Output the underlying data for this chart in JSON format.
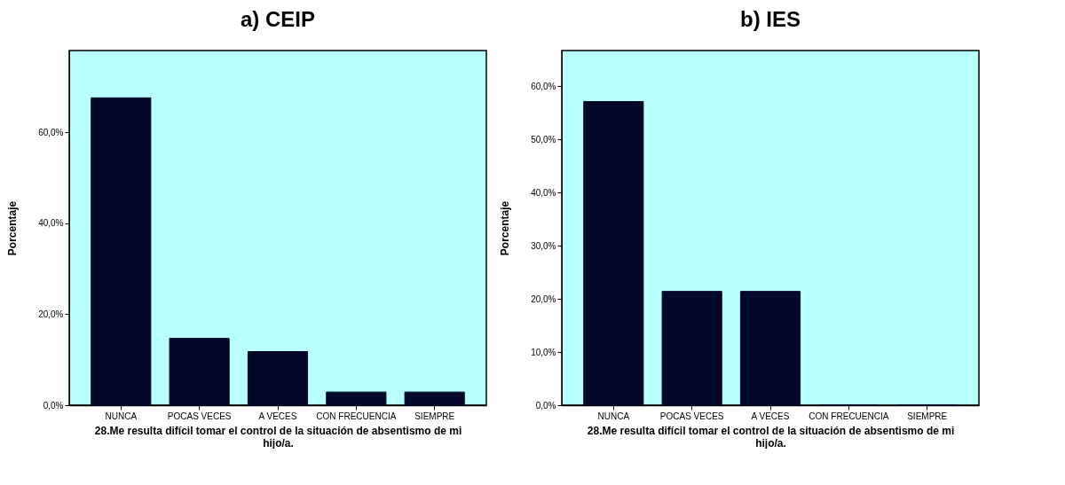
{
  "chart_data": [
    {
      "type": "bar",
      "title": "a)   CEIP",
      "xlabel": "28.Me resulta difícil tomar el control de la situación de absentismo de mi hijo/a.",
      "ylabel": "Porcentaje",
      "categories": [
        "NUNCA",
        "POCAS VECES",
        "A VECES",
        "CON FRECUENCIA",
        "SIEMPRE"
      ],
      "values": [
        67.6,
        14.7,
        11.8,
        2.9,
        2.9
      ],
      "color": "#030828",
      "ylim": [
        0,
        78
      ],
      "yticks": [
        {
          "value": 0,
          "label": "0,0%"
        },
        {
          "value": 20,
          "label": "20,0%"
        },
        {
          "value": 40,
          "label": "40,0%"
        },
        {
          "value": 60,
          "label": "60,0%"
        }
      ],
      "grid": false
    },
    {
      "type": "bar",
      "title": "b) IES",
      "xlabel": "28.Me resulta difícil tomar el control de la situación de absentismo de mi hijo/a.",
      "ylabel": "Porcentaje",
      "categories": [
        "NUNCA",
        "POCAS VECES",
        "A VECES",
        "CON FRECUENCIA",
        "SIEMPRE"
      ],
      "values": [
        57.1,
        21.4,
        21.4,
        0,
        0
      ],
      "color": "#030828",
      "ylim": [
        0,
        66.7
      ],
      "yticks": [
        {
          "value": 0,
          "label": "0,0%"
        },
        {
          "value": 10,
          "label": "10,0%"
        },
        {
          "value": 20,
          "label": "20,0%"
        },
        {
          "value": 30,
          "label": "30,0%"
        },
        {
          "value": 40,
          "label": "40,0%"
        },
        {
          "value": 50,
          "label": "50,0%"
        },
        {
          "value": 60,
          "label": "60,0%"
        }
      ],
      "grid": false
    }
  ]
}
